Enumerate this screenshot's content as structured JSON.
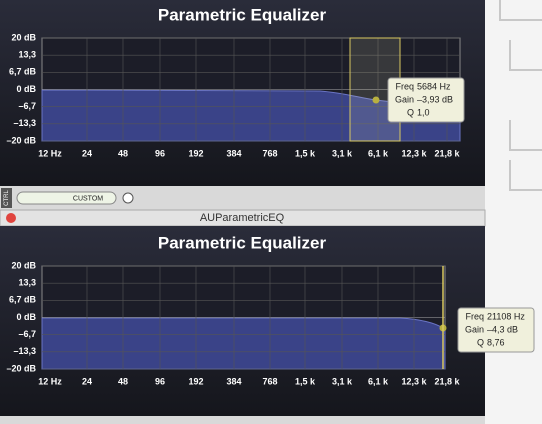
{
  "top_panel": {
    "title": "Parametric Equalizer",
    "y_labels": [
      "20 dB",
      "13,3",
      "6,7 dB",
      "0 dB",
      "–6,7",
      "–13,3",
      "–20 dB"
    ],
    "x_labels": [
      "12 Hz",
      "24",
      "48",
      "96",
      "192",
      "384",
      "768",
      "1,5 k",
      "3,1 k",
      "6,1 k",
      "12,3 k",
      "21,8 k"
    ],
    "tooltip": {
      "freq_label": "Freq",
      "freq": "5684 Hz",
      "gain_label": "Gain",
      "gain": "–3,93 dB",
      "q_label": "Q",
      "q": "1,0"
    }
  },
  "controls": {
    "ctrl": "CTRL",
    "preset": "CUSTOM"
  },
  "window": {
    "title": "AUParametricEQ"
  },
  "bottom_panel": {
    "title": "Parametric Equalizer",
    "y_labels": [
      "20 dB",
      "13,3",
      "6,7 dB",
      "0 dB",
      "–6,7",
      "–13,3",
      "–20 dB"
    ],
    "x_labels": [
      "12 Hz",
      "24",
      "48",
      "96",
      "192",
      "384",
      "768",
      "1,5 k",
      "3,1 k",
      "6,1 k",
      "12,3 k",
      "21,8 k"
    ],
    "tooltip": {
      "freq_label": "Freq",
      "freq": "21108 Hz",
      "gain_label": "Gain",
      "gain": "–4,3 dB",
      "q_label": "Q",
      "q": "8,76"
    }
  }
}
